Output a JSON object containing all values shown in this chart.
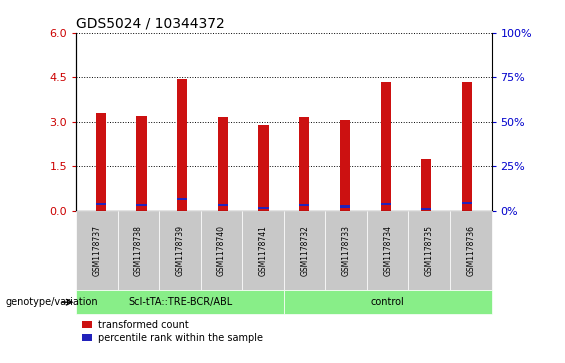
{
  "title": "GDS5024 / 10344372",
  "samples": [
    "GSM1178737",
    "GSM1178738",
    "GSM1178739",
    "GSM1178740",
    "GSM1178741",
    "GSM1178732",
    "GSM1178733",
    "GSM1178734",
    "GSM1178735",
    "GSM1178736"
  ],
  "transformed_count": [
    3.3,
    3.2,
    4.45,
    3.15,
    2.9,
    3.15,
    3.05,
    4.35,
    1.75,
    4.35
  ],
  "percentile_rank": [
    0.22,
    0.19,
    0.38,
    0.19,
    0.09,
    0.18,
    0.14,
    0.22,
    0.06,
    0.25
  ],
  "group1_label": "ScI-tTA::TRE-BCR/ABL",
  "group2_label": "control",
  "group1_indices": [
    0,
    1,
    2,
    3,
    4
  ],
  "group2_indices": [
    5,
    6,
    7,
    8,
    9
  ],
  "genotype_label": "genotype/variation",
  "legend_transformed": "transformed count",
  "legend_percentile": "percentile rank within the sample",
  "ylim_left": [
    0,
    6
  ],
  "ylim_right": [
    0,
    100
  ],
  "yticks_left": [
    0,
    1.5,
    3.0,
    4.5,
    6
  ],
  "yticks_right": [
    0,
    25,
    50,
    75,
    100
  ],
  "bar_color_red": "#CC1111",
  "bar_color_blue": "#2222BB",
  "bg_plot": "#FFFFFF",
  "bg_xtick_gray": "#C8C8C8",
  "bg_group": "#88EE88",
  "left_tick_color": "#CC0000",
  "right_tick_color": "#0000CC",
  "bar_width": 0.25
}
